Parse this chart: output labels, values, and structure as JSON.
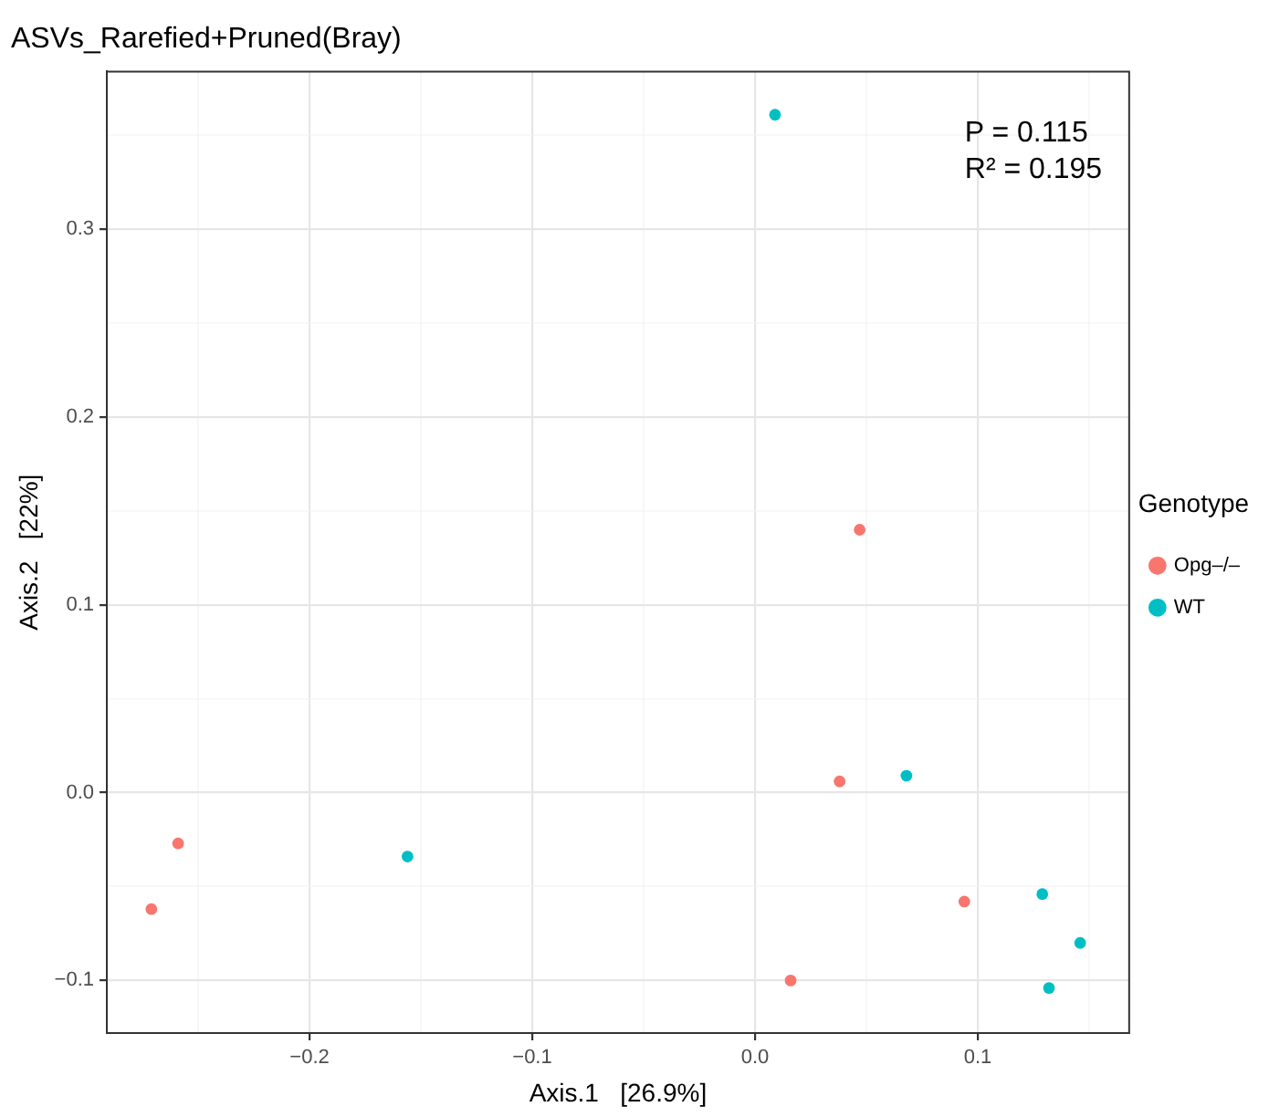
{
  "chart_data": {
    "type": "scatter",
    "title": "ASVs_Rarefied+Pruned(Bray)",
    "xlabel": "Axis.1   [26.9%]",
    "ylabel": "Axis.2   [22%]",
    "legend_title": "Genotype",
    "annotations": [
      "P = 0.115",
      "R² = 0.195"
    ],
    "series": [
      {
        "name": "Opg–/–",
        "color": "#f8766d",
        "x": [
          -0.259,
          -0.271,
          0.047,
          0.038,
          0.094,
          0.016
        ],
        "values": [
          -0.027,
          -0.062,
          0.14,
          0.006,
          -0.058,
          -0.1
        ]
      },
      {
        "name": "WT",
        "color": "#00bfc4",
        "x": [
          0.009,
          -0.156,
          0.068,
          0.129,
          0.146,
          0.132
        ],
        "values": [
          0.361,
          -0.034,
          0.009,
          -0.054,
          -0.08,
          -0.104
        ]
      }
    ],
    "xlim": [
      -0.291,
      0.168
    ],
    "ylim": [
      -0.128,
      0.384
    ],
    "xticks": [
      {
        "value": -0.25,
        "label": null
      },
      -0.2,
      {
        "value": -0.15,
        "label": null
      },
      -0.1,
      {
        "value": -0.05,
        "label": null
      },
      {
        "value": 0,
        "label": "0.0"
      },
      {
        "value": 0.05,
        "label": null
      },
      0.1,
      {
        "value": 0.15,
        "label": null
      }
    ],
    "yticks": [
      {
        "value": -0.05,
        "label": null
      },
      -0.1,
      {
        "value": 0,
        "label": "0.0"
      },
      {
        "value": 0.05,
        "label": null
      },
      0.1,
      {
        "value": 0.15,
        "label": null
      },
      0.2,
      {
        "value": 0.25,
        "label": null
      },
      0.3,
      {
        "value": 0.35,
        "label": null
      }
    ],
    "grid": true,
    "legend": "right",
    "marker": "circle"
  }
}
